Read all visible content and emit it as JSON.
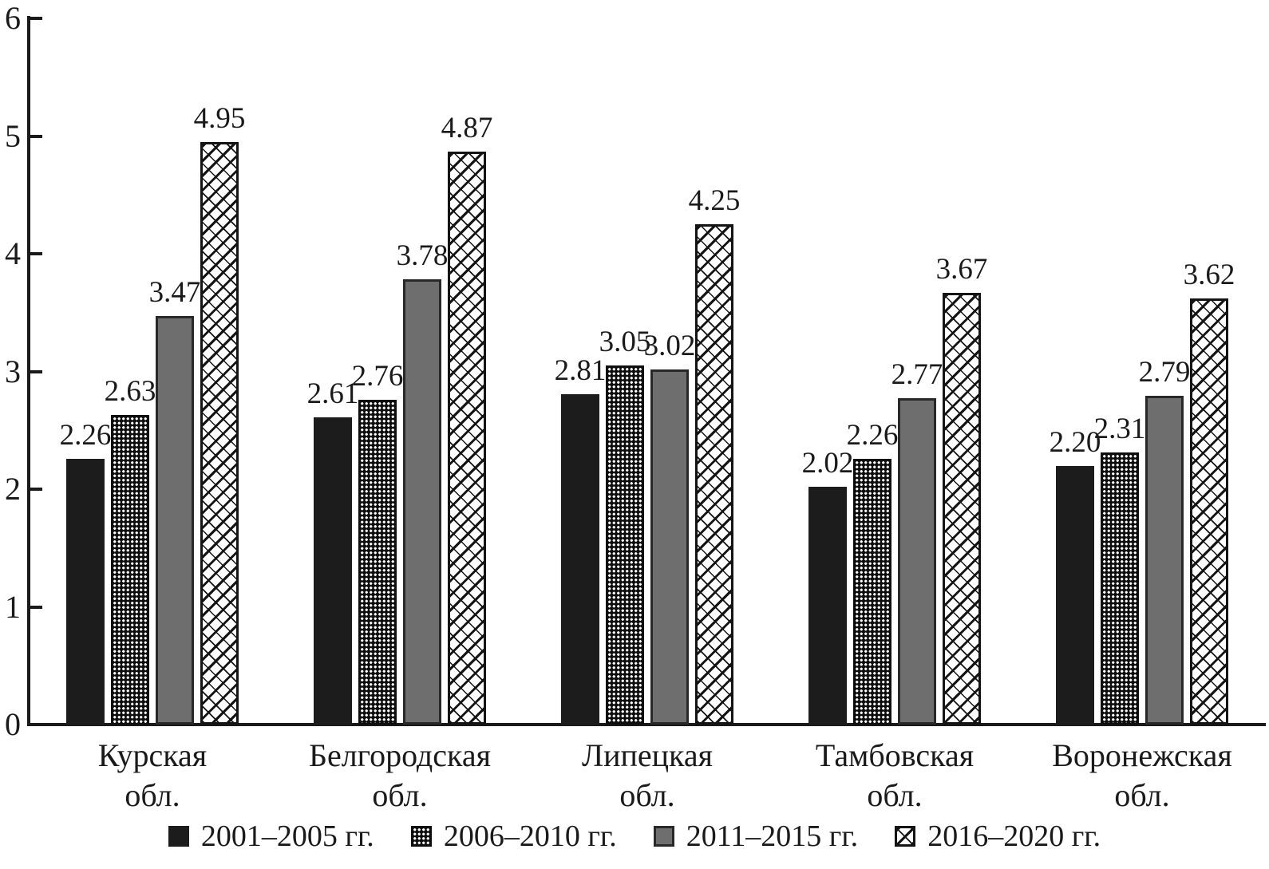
{
  "chart_data": {
    "type": "bar",
    "title": "",
    "xlabel": "",
    "ylabel": "",
    "categories": [
      "Курская",
      "Белгородская",
      "Липецкая",
      "Тамбовская",
      "Воронежская"
    ],
    "category_suffix": "обл.",
    "series": [
      {
        "name": "2001–2005 гг.",
        "pattern": "solid-black",
        "values": [
          2.26,
          2.61,
          2.81,
          2.02,
          2.2
        ]
      },
      {
        "name": "2006–2010 гг.",
        "pattern": "dot-grid",
        "values": [
          2.63,
          2.76,
          3.05,
          2.26,
          2.31
        ]
      },
      {
        "name": "2011–2015 гг.",
        "pattern": "solid-gray",
        "values": [
          3.47,
          3.78,
          3.02,
          2.77,
          2.79
        ]
      },
      {
        "name": "2016–2020 гг.",
        "pattern": "diag-hatch",
        "values": [
          4.95,
          4.87,
          4.25,
          3.67,
          3.62
        ]
      }
    ],
    "ylim": [
      0,
      6
    ],
    "yticks": [
      0,
      1,
      2,
      3,
      4,
      5,
      6
    ],
    "value_labels": true,
    "value_label_decimals": 2,
    "grid": false,
    "legend_position": "bottom"
  },
  "colors": {
    "ink": "#1a1a1a",
    "bar_black": "#1c1c1c",
    "bar_gray": "#6e6e6e",
    "background": "#ffffff"
  }
}
